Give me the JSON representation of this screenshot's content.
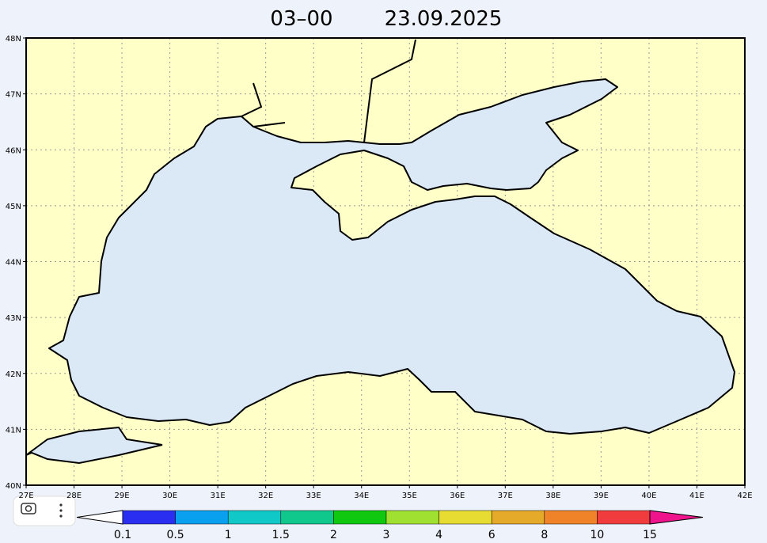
{
  "header": {
    "time": "03–00",
    "date": "23.09.2025"
  },
  "map": {
    "lat_labels": [
      "40N",
      "41N",
      "42N",
      "43N",
      "44N",
      "45N",
      "46N",
      "47N",
      "48N"
    ],
    "lon_labels": [
      "27E",
      "28E",
      "29E",
      "30E",
      "31E",
      "32E",
      "33E",
      "34E",
      "35E",
      "36E",
      "37E",
      "38E",
      "39E",
      "40E",
      "41E",
      "42E"
    ]
  },
  "legend": {
    "labels": [
      "0.1",
      "0.5",
      "1",
      "1.5",
      "2",
      "3",
      "4",
      "6",
      "8",
      "10",
      "15"
    ],
    "colors": [
      "#2a2ef0",
      "#0aa0f0",
      "#10c8c8",
      "#10c88c",
      "#10c810",
      "#a0e030",
      "#e6dc32",
      "#e6aa2a",
      "#f08228",
      "#f03c3c"
    ],
    "low_color": "#ffffff",
    "high_color": "#f0148c"
  }
}
